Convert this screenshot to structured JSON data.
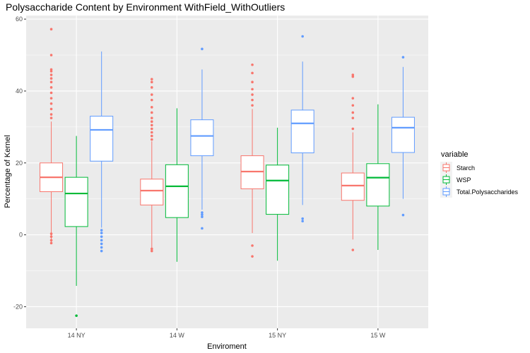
{
  "chart_data": {
    "type": "boxplot",
    "title": "Polysaccharide Content by Environment WithField_WithOutliers",
    "xlabel": "Enviroment",
    "ylabel": "Percentage of Kernel",
    "categories": [
      "14 NY",
      "14 W",
      "15 NY",
      "15 W"
    ],
    "ylim": [
      -26,
      61
    ],
    "yticks": [
      -20,
      0,
      20,
      40,
      60
    ],
    "grid": true,
    "legend": {
      "title": "variable",
      "position": "right"
    },
    "series": [
      {
        "name": "Starch",
        "color": "#F8766D",
        "boxes": [
          {
            "whisker_low": -2,
            "q1": 12,
            "median": 16,
            "q3": 20,
            "whisker_high": 31.5,
            "outliers": [
              -2.3,
              -1.5,
              -0.5,
              0.3,
              32.5,
              33.5,
              35,
              36.5,
              38,
              39.5,
              41,
              42.5,
              43.5,
              44.5,
              45.5,
              46,
              50,
              57.2
            ]
          },
          {
            "whisker_low": -3.8,
            "q1": 8.3,
            "median": 12.3,
            "q3": 15.5,
            "whisker_high": 26,
            "outliers": [
              -4.5,
              -3.9,
              26.5,
              27.5,
              28.5,
              29.5,
              30.5,
              31.5,
              32.5,
              34,
              35.5,
              37.5,
              39,
              41,
              42.5,
              43.3
            ]
          },
          {
            "whisker_low": 0.5,
            "q1": 12.8,
            "median": 17.6,
            "q3": 22,
            "whisker_high": 35,
            "outliers": [
              -3,
              -6,
              36,
              37.5,
              39,
              40.5,
              42.5,
              45,
              47.3
            ]
          },
          {
            "whisker_low": -1.3,
            "q1": 9.6,
            "median": 13.7,
            "q3": 17.2,
            "whisker_high": 28.5,
            "outliers": [
              -4.2,
              29.5,
              32.5,
              34,
              36,
              38,
              44,
              44.5
            ]
          }
        ]
      },
      {
        "name": "WSP",
        "color": "#00BA38",
        "boxes": [
          {
            "whisker_low": -14.2,
            "q1": 2.3,
            "median": 11.5,
            "q3": 16,
            "whisker_high": 27.5,
            "outliers": [
              -22.5
            ]
          },
          {
            "whisker_low": -7.5,
            "q1": 4.8,
            "median": 13.5,
            "q3": 19.5,
            "whisker_high": 35.2,
            "outliers": []
          },
          {
            "whisker_low": -7.2,
            "q1": 5.7,
            "median": 15.1,
            "q3": 19.4,
            "whisker_high": 29.8,
            "outliers": []
          },
          {
            "whisker_low": -4.2,
            "q1": 8,
            "median": 15.9,
            "q3": 19.8,
            "whisker_high": 36.3,
            "outliers": []
          }
        ]
      },
      {
        "name": "Total.Polysaccharides",
        "color": "#619CFF",
        "boxes": [
          {
            "whisker_low": 2,
            "q1": 20.5,
            "median": 29.2,
            "q3": 33,
            "whisker_high": 51,
            "outliers": [
              -4.5,
              -3.5,
              -2.5,
              -1.5,
              -0.5,
              0.5,
              1.3
            ]
          },
          {
            "whisker_low": 7,
            "q1": 22,
            "median": 27.5,
            "q3": 32,
            "whisker_high": 46,
            "outliers": [
              1.8,
              5,
              5.6,
              6.2,
              51.7
            ]
          },
          {
            "whisker_low": 8.3,
            "q1": 22.8,
            "median": 31,
            "q3": 34.7,
            "whisker_high": 48.2,
            "outliers": [
              3.8,
              4.5,
              55.2
            ]
          },
          {
            "whisker_low": 10,
            "q1": 22.9,
            "median": 29.8,
            "q3": 32.7,
            "whisker_high": 46.7,
            "outliers": [
              5.5,
              49.4
            ]
          }
        ]
      }
    ]
  }
}
